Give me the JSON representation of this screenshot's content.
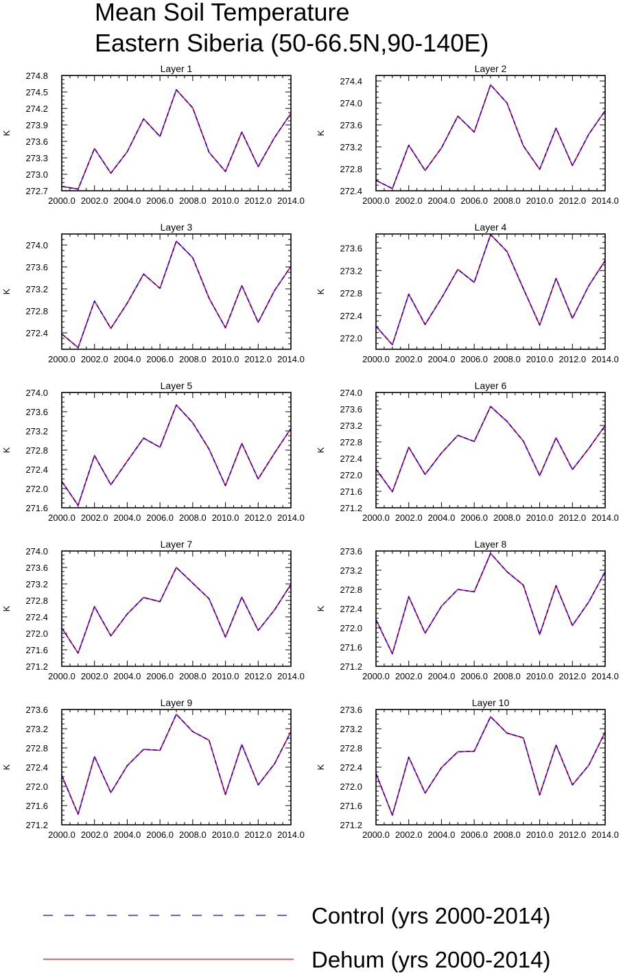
{
  "title": [
    "Mean Soil Temperature",
    "Eastern Siberia (50-66.5N,90-140E)"
  ],
  "colors": {
    "control": "#0000ff",
    "dehum": "#ff0000",
    "axis": "#000000"
  },
  "legend": {
    "control_label": "Control (yrs 2000-2014)",
    "dehum_label": "Dehum (yrs 2000-2014)"
  },
  "chart_data": [
    {
      "type": "line",
      "title": "Layer 1",
      "ylabel": "K",
      "xlim": [
        2000,
        2014
      ],
      "ylim": [
        272.7,
        274.8
      ],
      "xticks": [
        "2000.0",
        "2002.0",
        "2004.0",
        "2006.0",
        "2008.0",
        "2010.0",
        "2012.0",
        "2014.0"
      ],
      "yticks": [
        "272.7",
        "273.0",
        "273.3",
        "273.6",
        "273.9",
        "274.2",
        "274.5",
        "274.8"
      ],
      "x": [
        2000,
        2001,
        2002,
        2003,
        2004,
        2005,
        2006,
        2007,
        2008,
        2009,
        2010,
        2011,
        2012,
        2013,
        2014
      ],
      "series": [
        {
          "name": "Control (yrs 2000-2014)",
          "values": [
            272.78,
            272.73,
            273.47,
            273.02,
            273.41,
            274.01,
            273.69,
            274.54,
            274.21,
            273.4,
            273.05,
            273.77,
            273.14,
            273.67,
            274.11
          ]
        },
        {
          "name": "Dehum (yrs 2000-2014)",
          "values": [
            272.78,
            272.73,
            273.47,
            273.02,
            273.41,
            274.01,
            273.69,
            274.54,
            274.21,
            273.4,
            273.05,
            273.77,
            273.14,
            273.67,
            274.11
          ]
        }
      ]
    },
    {
      "type": "line",
      "title": "Layer 2",
      "ylabel": "K",
      "xlim": [
        2000,
        2014
      ],
      "ylim": [
        272.4,
        274.5
      ],
      "xticks": [
        "2000.0",
        "2002.0",
        "2004.0",
        "2006.0",
        "2008.0",
        "2010.0",
        "2012.0",
        "2014.0"
      ],
      "yticks": [
        "272.4",
        "272.8",
        "273.2",
        "273.6",
        "274.0",
        "274.4"
      ],
      "x": [
        2000,
        2001,
        2002,
        2003,
        2004,
        2005,
        2006,
        2007,
        2008,
        2009,
        2010,
        2011,
        2012,
        2013,
        2014
      ],
      "series": [
        {
          "name": "Control (yrs 2000-2014)",
          "values": [
            272.59,
            272.44,
            273.23,
            272.77,
            273.18,
            273.76,
            273.47,
            274.33,
            274.0,
            273.22,
            272.79,
            273.54,
            272.86,
            273.43,
            273.86
          ]
        },
        {
          "name": "Dehum (yrs 2000-2014)",
          "values": [
            272.59,
            272.44,
            273.23,
            272.77,
            273.18,
            273.76,
            273.47,
            274.33,
            274.0,
            273.22,
            272.79,
            273.54,
            272.86,
            273.43,
            273.86
          ]
        }
      ]
    },
    {
      "type": "line",
      "title": "Layer 3",
      "ylabel": "K",
      "xlim": [
        2000,
        2014
      ],
      "ylim": [
        272.1,
        274.2
      ],
      "xticks": [
        "2000.0",
        "2002.0",
        "2004.0",
        "2006.0",
        "2008.0",
        "2010.0",
        "2012.0",
        "2014.0"
      ],
      "yticks": [
        "272.4",
        "272.8",
        "273.2",
        "273.6",
        "274.0"
      ],
      "x": [
        2000,
        2001,
        2002,
        2003,
        2004,
        2005,
        2006,
        2007,
        2008,
        2009,
        2010,
        2011,
        2012,
        2013,
        2014
      ],
      "series": [
        {
          "name": "Control (yrs 2000-2014)",
          "values": [
            272.38,
            272.13,
            272.98,
            272.48,
            272.94,
            273.47,
            273.21,
            274.07,
            273.77,
            273.03,
            272.49,
            273.26,
            272.59,
            273.17,
            273.61
          ]
        },
        {
          "name": "Dehum (yrs 2000-2014)",
          "values": [
            272.38,
            272.13,
            272.98,
            272.48,
            272.94,
            273.47,
            273.21,
            274.07,
            273.77,
            273.03,
            272.49,
            273.26,
            272.59,
            273.17,
            273.61
          ]
        }
      ]
    },
    {
      "type": "line",
      "title": "Layer 4",
      "ylabel": "K",
      "xlim": [
        2000,
        2014
      ],
      "ylim": [
        271.8,
        273.85
      ],
      "xticks": [
        "2000.0",
        "2002.0",
        "2004.0",
        "2006.0",
        "2008.0",
        "2010.0",
        "2012.0",
        "2014.0"
      ],
      "yticks": [
        "272.0",
        "272.4",
        "272.8",
        "273.2",
        "273.6"
      ],
      "x": [
        2000,
        2001,
        2002,
        2003,
        2004,
        2005,
        2006,
        2007,
        2008,
        2009,
        2010,
        2011,
        2012,
        2013,
        2014
      ],
      "series": [
        {
          "name": "Control (yrs 2000-2014)",
          "values": [
            272.21,
            271.88,
            272.78,
            272.24,
            272.71,
            273.22,
            272.99,
            273.84,
            273.54,
            272.88,
            272.23,
            273.06,
            272.35,
            272.93,
            273.38
          ]
        },
        {
          "name": "Dehum (yrs 2000-2014)",
          "values": [
            272.21,
            271.88,
            272.78,
            272.24,
            272.71,
            273.22,
            272.99,
            273.84,
            273.54,
            272.88,
            272.23,
            273.06,
            272.35,
            272.93,
            273.38
          ]
        }
      ]
    },
    {
      "type": "line",
      "title": "Layer 5",
      "ylabel": "K",
      "xlim": [
        2000,
        2014
      ],
      "ylim": [
        271.6,
        274.0
      ],
      "xticks": [
        "2000.0",
        "2002.0",
        "2004.0",
        "2006.0",
        "2008.0",
        "2010.0",
        "2012.0",
        "2014.0"
      ],
      "yticks": [
        "271.6",
        "272.0",
        "272.4",
        "272.8",
        "273.2",
        "273.6",
        "274.0"
      ],
      "x": [
        2000,
        2001,
        2002,
        2003,
        2004,
        2005,
        2006,
        2007,
        2008,
        2009,
        2010,
        2011,
        2012,
        2013,
        2014
      ],
      "series": [
        {
          "name": "Control (yrs 2000-2014)",
          "values": [
            272.15,
            271.65,
            272.69,
            272.08,
            272.57,
            273.05,
            272.86,
            273.74,
            273.37,
            272.82,
            272.06,
            272.94,
            272.2,
            272.74,
            273.25
          ]
        },
        {
          "name": "Dehum (yrs 2000-2014)",
          "values": [
            272.15,
            271.65,
            272.69,
            272.08,
            272.57,
            273.05,
            272.86,
            273.74,
            273.37,
            272.82,
            272.06,
            272.94,
            272.2,
            272.74,
            273.25
          ]
        }
      ]
    },
    {
      "type": "line",
      "title": "Layer 6",
      "ylabel": "K",
      "xlim": [
        2000,
        2014
      ],
      "ylim": [
        271.2,
        274.0
      ],
      "xticks": [
        "2000.0",
        "2002.0",
        "2004.0",
        "2006.0",
        "2008.0",
        "2010.0",
        "2012.0",
        "2014.0"
      ],
      "yticks": [
        "271.2",
        "271.6",
        "272.0",
        "272.4",
        "272.8",
        "273.2",
        "273.6",
        "274.0"
      ],
      "x": [
        2000,
        2001,
        2002,
        2003,
        2004,
        2005,
        2006,
        2007,
        2008,
        2009,
        2010,
        2011,
        2012,
        2013,
        2014
      ],
      "series": [
        {
          "name": "Control (yrs 2000-2014)",
          "values": [
            272.14,
            271.59,
            272.67,
            272.01,
            272.53,
            272.96,
            272.81,
            273.66,
            273.3,
            272.82,
            271.98,
            272.9,
            272.13,
            272.64,
            273.2
          ]
        },
        {
          "name": "Dehum (yrs 2000-2014)",
          "values": [
            272.14,
            271.59,
            272.67,
            272.01,
            272.53,
            272.96,
            272.81,
            273.66,
            273.3,
            272.82,
            271.98,
            272.9,
            272.13,
            272.64,
            273.2
          ]
        }
      ]
    },
    {
      "type": "line",
      "title": "Layer 7",
      "ylabel": "K",
      "xlim": [
        2000,
        2014
      ],
      "ylim": [
        271.2,
        274.0
      ],
      "xticks": [
        "2000.0",
        "2002.0",
        "2004.0",
        "2006.0",
        "2008.0",
        "2010.0",
        "2012.0",
        "2014.0"
      ],
      "yticks": [
        "271.2",
        "271.6",
        "272.0",
        "272.4",
        "272.8",
        "273.2",
        "273.6",
        "274.0"
      ],
      "x": [
        2000,
        2001,
        2002,
        2003,
        2004,
        2005,
        2006,
        2007,
        2008,
        2009,
        2010,
        2011,
        2012,
        2013,
        2014
      ],
      "series": [
        {
          "name": "Control (yrs 2000-2014)",
          "values": [
            272.13,
            271.52,
            272.65,
            271.94,
            272.47,
            272.87,
            272.77,
            273.6,
            273.22,
            272.84,
            271.91,
            272.88,
            272.07,
            272.57,
            273.19
          ]
        },
        {
          "name": "Dehum (yrs 2000-2014)",
          "values": [
            272.13,
            271.52,
            272.65,
            271.94,
            272.47,
            272.87,
            272.77,
            273.6,
            273.22,
            272.84,
            271.91,
            272.88,
            272.07,
            272.57,
            273.19
          ]
        }
      ]
    },
    {
      "type": "line",
      "title": "Layer 8",
      "ylabel": "K",
      "xlim": [
        2000,
        2014
      ],
      "ylim": [
        271.2,
        273.6
      ],
      "xticks": [
        "2000.0",
        "2002.0",
        "2004.0",
        "2006.0",
        "2008.0",
        "2010.0",
        "2012.0",
        "2014.0"
      ],
      "yticks": [
        "271.2",
        "271.6",
        "272.0",
        "272.4",
        "272.8",
        "273.2",
        "273.6"
      ],
      "x": [
        2000,
        2001,
        2002,
        2003,
        2004,
        2005,
        2006,
        2007,
        2008,
        2009,
        2010,
        2011,
        2012,
        2013,
        2014
      ],
      "series": [
        {
          "name": "Control (yrs 2000-2014)",
          "values": [
            272.17,
            271.46,
            272.65,
            271.89,
            272.45,
            272.8,
            272.75,
            273.55,
            273.17,
            272.89,
            271.86,
            272.88,
            272.05,
            272.54,
            273.17
          ]
        },
        {
          "name": "Dehum (yrs 2000-2014)",
          "values": [
            272.17,
            271.46,
            272.65,
            271.89,
            272.45,
            272.8,
            272.75,
            273.55,
            273.17,
            272.89,
            271.86,
            272.88,
            272.05,
            272.54,
            273.17
          ]
        }
      ]
    },
    {
      "type": "line",
      "title": "Layer 9",
      "ylabel": "K",
      "xlim": [
        2000,
        2014
      ],
      "ylim": [
        271.2,
        273.6
      ],
      "xticks": [
        "2000.0",
        "2002.0",
        "2004.0",
        "2006.0",
        "2008.0",
        "2010.0",
        "2012.0",
        "2014.0"
      ],
      "yticks": [
        "271.2",
        "271.6",
        "272.0",
        "272.4",
        "272.8",
        "273.2",
        "273.6"
      ],
      "x": [
        2000,
        2001,
        2002,
        2003,
        2004,
        2005,
        2006,
        2007,
        2008,
        2009,
        2010,
        2011,
        2012,
        2013,
        2014
      ],
      "series": [
        {
          "name": "Control (yrs 2000-2014)",
          "values": [
            272.23,
            271.42,
            272.62,
            271.87,
            272.43,
            272.77,
            272.75,
            273.5,
            273.14,
            272.96,
            271.83,
            272.87,
            272.03,
            272.47,
            273.14
          ]
        },
        {
          "name": "Dehum (yrs 2000-2014)",
          "values": [
            272.23,
            271.42,
            272.62,
            271.87,
            272.43,
            272.77,
            272.75,
            273.5,
            273.14,
            272.96,
            271.83,
            272.87,
            272.03,
            272.47,
            273.14
          ]
        }
      ]
    },
    {
      "type": "line",
      "title": "Layer 10",
      "ylabel": "K",
      "xlim": [
        2000,
        2014
      ],
      "ylim": [
        271.2,
        273.6
      ],
      "xticks": [
        "2000.0",
        "2002.0",
        "2004.0",
        "2006.0",
        "2008.0",
        "2010.0",
        "2012.0",
        "2014.0"
      ],
      "yticks": [
        "271.2",
        "271.6",
        "272.0",
        "272.4",
        "272.8",
        "273.2",
        "273.6"
      ],
      "x": [
        2000,
        2001,
        2002,
        2003,
        2004,
        2005,
        2006,
        2007,
        2008,
        2009,
        2010,
        2011,
        2012,
        2013,
        2014
      ],
      "series": [
        {
          "name": "Control (yrs 2000-2014)",
          "values": [
            272.27,
            271.4,
            272.61,
            271.86,
            272.39,
            272.72,
            272.73,
            273.45,
            273.11,
            273.01,
            271.82,
            272.86,
            272.03,
            272.44,
            273.13
          ]
        },
        {
          "name": "Dehum (yrs 2000-2014)",
          "values": [
            272.27,
            271.4,
            272.61,
            271.86,
            272.39,
            272.72,
            272.73,
            273.45,
            273.11,
            273.01,
            271.82,
            272.86,
            272.03,
            272.44,
            273.13
          ]
        }
      ]
    }
  ]
}
